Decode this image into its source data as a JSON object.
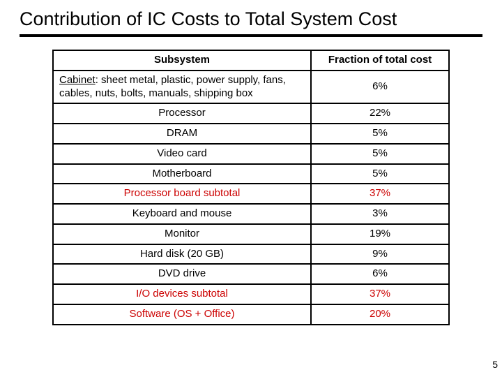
{
  "title": "Contribution of IC Costs to Total System Cost",
  "table": {
    "headers": {
      "subsystem": "Subsystem",
      "fraction": "Fraction of total cost"
    },
    "rows": [
      {
        "label_prefix": "Cabinet",
        "label_rest": ": sheet metal, plastic, power supply, fans, cables, nuts, bolts, manuals, shipping box",
        "value": "6%",
        "underlined": true,
        "left": true,
        "highlight": false
      },
      {
        "label": "Processor",
        "value": "22%",
        "highlight": false
      },
      {
        "label": "DRAM",
        "value": "5%",
        "highlight": false
      },
      {
        "label": "Video card",
        "value": "5%",
        "highlight": false
      },
      {
        "label": "Motherboard",
        "value": "5%",
        "highlight": false
      },
      {
        "label": "Processor board subtotal",
        "value": "37%",
        "highlight": true
      },
      {
        "label": "Keyboard and mouse",
        "value": "3%",
        "highlight": false
      },
      {
        "label": "Monitor",
        "value": "19%",
        "highlight": false
      },
      {
        "label": "Hard disk (20 GB)",
        "value": "9%",
        "highlight": false
      },
      {
        "label": "DVD drive",
        "value": "6%",
        "highlight": false
      },
      {
        "label": "I/O devices subtotal",
        "value": "37%",
        "highlight": true
      },
      {
        "label": "Software (OS + Office)",
        "value": "20%",
        "highlight": true
      }
    ]
  },
  "colors": {
    "highlight": "#cc0000",
    "text": "#000000",
    "border": "#000000",
    "background": "#ffffff"
  },
  "page_number": "5"
}
